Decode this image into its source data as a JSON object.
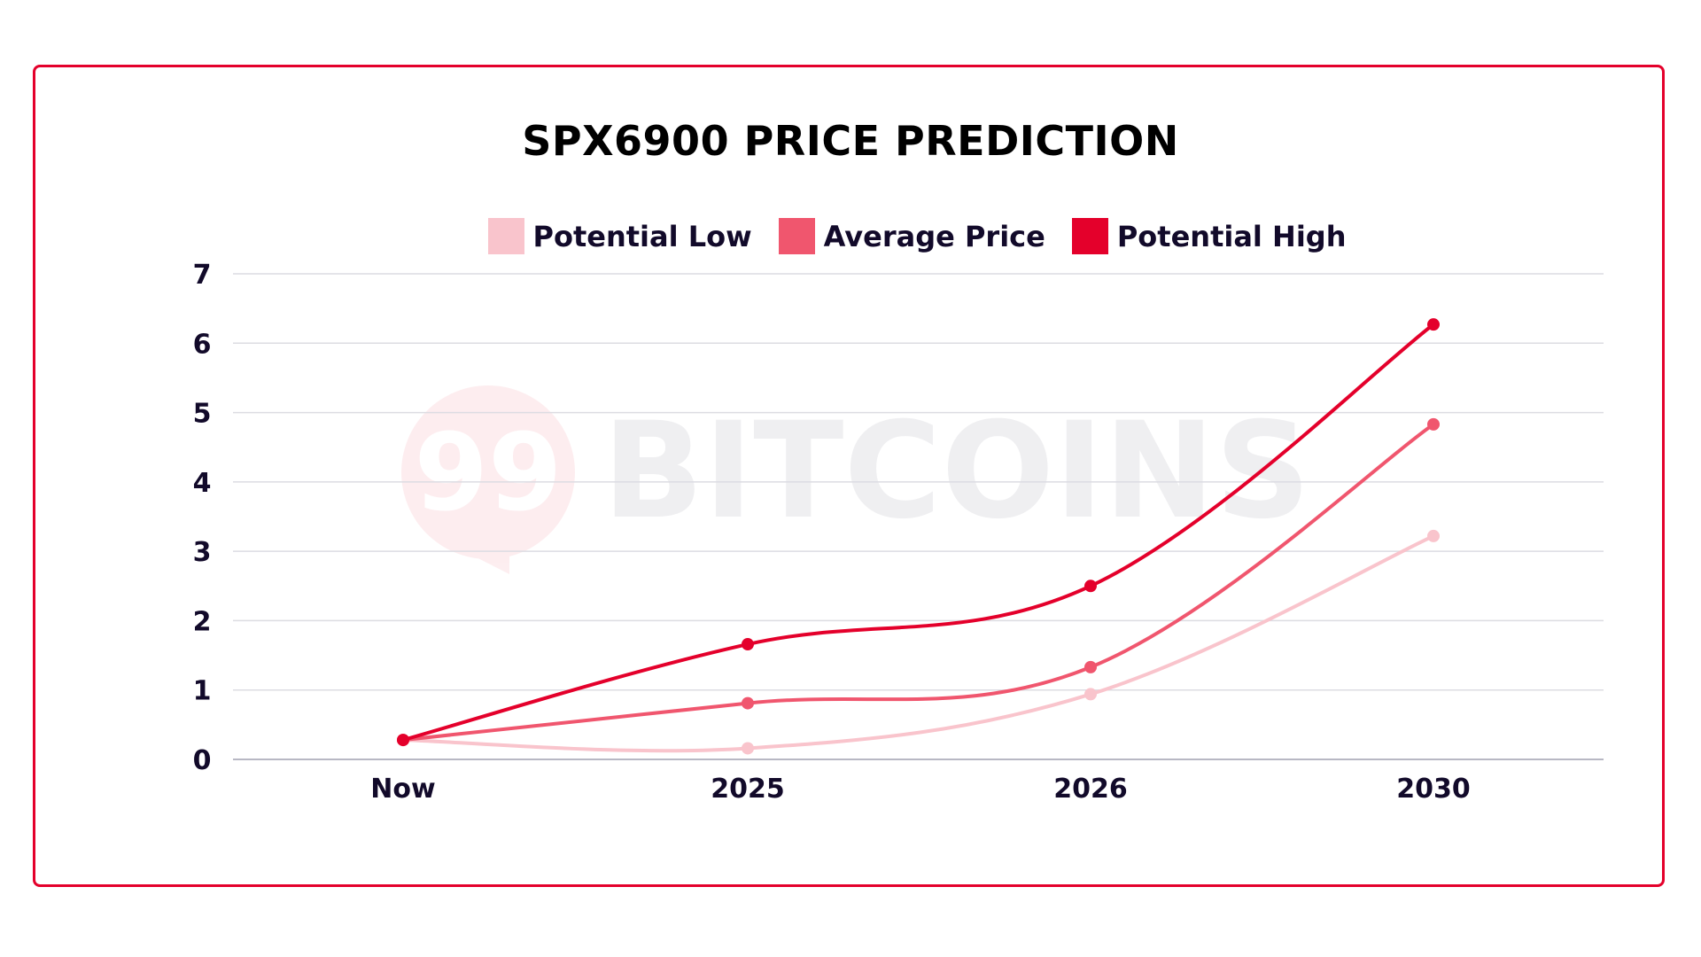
{
  "chart_data": {
    "type": "line",
    "title": "SPX6900 PRICE PREDICTION",
    "categories": [
      "Now",
      "2025",
      "2026",
      "2030"
    ],
    "series": [
      {
        "name": "Potential Low",
        "color": "#f9c4cc",
        "values": [
          0.28,
          0.16,
          0.94,
          3.22
        ]
      },
      {
        "name": "Average Price",
        "color": "#f0566e",
        "values": [
          0.28,
          0.81,
          1.33,
          4.83
        ]
      },
      {
        "name": "Potential High",
        "color": "#e4002b",
        "values": [
          0.28,
          1.66,
          2.5,
          6.27
        ]
      }
    ],
    "ylim": [
      0,
      7
    ],
    "yticks": [
      "0",
      "1",
      "2",
      "3",
      "4",
      "5",
      "6",
      "7"
    ],
    "grid": true,
    "legend": "top",
    "xlabel": "",
    "ylabel": ""
  },
  "watermark": "99 BITCOINS",
  "accent_color": "#e4002b"
}
